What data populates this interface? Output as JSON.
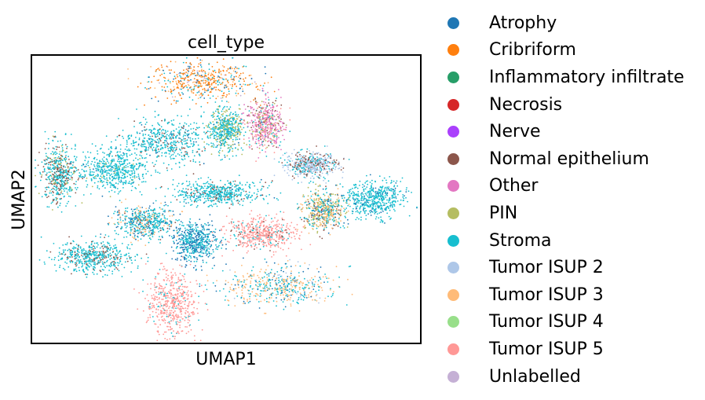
{
  "chart_data": {
    "type": "scatter",
    "title": "cell_type",
    "xlabel": "UMAP1",
    "ylabel": "UMAP2",
    "xlim": [
      0,
      100
    ],
    "ylim": [
      0,
      100
    ],
    "grid": false,
    "ticks": false,
    "legend_position": "right",
    "legend": [
      {
        "name": "Atrophy",
        "color": "#1f77b4"
      },
      {
        "name": "Cribriform",
        "color": "#ff7f0e"
      },
      {
        "name": "Inflammatory infiltrate",
        "color": "#279e68"
      },
      {
        "name": "Necrosis",
        "color": "#d62728"
      },
      {
        "name": "Nerve",
        "color": "#aa40fc"
      },
      {
        "name": "Normal epithelium",
        "color": "#8c564b"
      },
      {
        "name": "Other",
        "color": "#e377c2"
      },
      {
        "name": "PIN",
        "color": "#b5bd61"
      },
      {
        "name": "Stroma",
        "color": "#17becf"
      },
      {
        "name": "Tumor ISUP 2",
        "color": "#aec7e8"
      },
      {
        "name": "Tumor ISUP 3",
        "color": "#ffbb78"
      },
      {
        "name": "Tumor ISUP 4",
        "color": "#98df8a"
      },
      {
        "name": "Tumor ISUP 5",
        "color": "#ff9896"
      },
      {
        "name": "Unlabelled",
        "color": "#c5b0d5"
      }
    ],
    "clusters": [
      {
        "x": 44,
        "y": 91,
        "rx": 12,
        "ry": 6,
        "mix": [
          [
            "Cribriform",
            0.55
          ],
          [
            "Tumor ISUP 3",
            0.15
          ],
          [
            "Stroma",
            0.15
          ],
          [
            "Atrophy",
            0.1
          ],
          [
            "Unlabelled",
            0.05
          ]
        ]
      },
      {
        "x": 34,
        "y": 70,
        "rx": 10,
        "ry": 7,
        "mix": [
          [
            "Stroma",
            0.85
          ],
          [
            "Normal epithelium",
            0.1
          ],
          [
            "Atrophy",
            0.05
          ]
        ]
      },
      {
        "x": 50,
        "y": 74,
        "rx": 4,
        "ry": 7,
        "mix": [
          [
            "Stroma",
            0.6
          ],
          [
            "PIN",
            0.35
          ],
          [
            "Atrophy",
            0.05
          ]
        ]
      },
      {
        "x": 60,
        "y": 76,
        "rx": 4,
        "ry": 8,
        "mix": [
          [
            "Other",
            0.45
          ],
          [
            "Tumor ISUP 5",
            0.2
          ],
          [
            "Normal epithelium",
            0.15
          ],
          [
            "PIN",
            0.1
          ],
          [
            "Stroma",
            0.1
          ]
        ]
      },
      {
        "x": 7,
        "y": 59,
        "rx": 4,
        "ry": 9,
        "mix": [
          [
            "Stroma",
            0.6
          ],
          [
            "Normal epithelium",
            0.3
          ],
          [
            "PIN",
            0.1
          ]
        ]
      },
      {
        "x": 21,
        "y": 60,
        "rx": 8,
        "ry": 6,
        "mix": [
          [
            "Stroma",
            0.9
          ],
          [
            "PIN",
            0.05
          ],
          [
            "Atrophy",
            0.05
          ]
        ]
      },
      {
        "x": 48,
        "y": 52,
        "rx": 10,
        "ry": 4,
        "mix": [
          [
            "Stroma",
            0.8
          ],
          [
            "Normal epithelium",
            0.15
          ],
          [
            "Atrophy",
            0.05
          ]
        ]
      },
      {
        "x": 72,
        "y": 62,
        "rx": 6,
        "ry": 4,
        "mix": [
          [
            "Tumor ISUP 2",
            0.5
          ],
          [
            "Normal epithelium",
            0.25
          ],
          [
            "Stroma",
            0.25
          ]
        ]
      },
      {
        "x": 75,
        "y": 46,
        "rx": 5,
        "ry": 6,
        "mix": [
          [
            "Tumor ISUP 3",
            0.35
          ],
          [
            "Stroma",
            0.25
          ],
          [
            "PIN",
            0.2
          ],
          [
            "Normal epithelium",
            0.1
          ],
          [
            "Atrophy",
            0.1
          ]
        ]
      },
      {
        "x": 88,
        "y": 50,
        "rx": 7,
        "ry": 6,
        "mix": [
          [
            "Stroma",
            0.85
          ],
          [
            "Atrophy",
            0.15
          ]
        ]
      },
      {
        "x": 29,
        "y": 42,
        "rx": 7,
        "ry": 5,
        "mix": [
          [
            "Stroma",
            0.55
          ],
          [
            "Atrophy",
            0.2
          ],
          [
            "Tumor ISUP 3",
            0.2
          ],
          [
            "Normal epithelium",
            0.05
          ]
        ]
      },
      {
        "x": 42,
        "y": 35,
        "rx": 5,
        "ry": 6,
        "mix": [
          [
            "Atrophy",
            0.5
          ],
          [
            "Stroma",
            0.5
          ]
        ]
      },
      {
        "x": 59,
        "y": 38,
        "rx": 8,
        "ry": 5,
        "mix": [
          [
            "Tumor ISUP 5",
            0.8
          ],
          [
            "Stroma",
            0.15
          ],
          [
            "Normal epithelium",
            0.05
          ]
        ]
      },
      {
        "x": 16,
        "y": 30,
        "rx": 9,
        "ry": 5,
        "mix": [
          [
            "Stroma",
            0.8
          ],
          [
            "Normal epithelium",
            0.2
          ]
        ]
      },
      {
        "x": 64,
        "y": 20,
        "rx": 13,
        "ry": 6,
        "mix": [
          [
            "Tumor ISUP 3",
            0.45
          ],
          [
            "Stroma",
            0.35
          ],
          [
            "Atrophy",
            0.15
          ],
          [
            "Tumor ISUP 2",
            0.05
          ]
        ]
      },
      {
        "x": 36,
        "y": 14,
        "rx": 6,
        "ry": 10,
        "mix": [
          [
            "Tumor ISUP 5",
            0.9
          ],
          [
            "Stroma",
            0.1
          ]
        ]
      }
    ]
  }
}
